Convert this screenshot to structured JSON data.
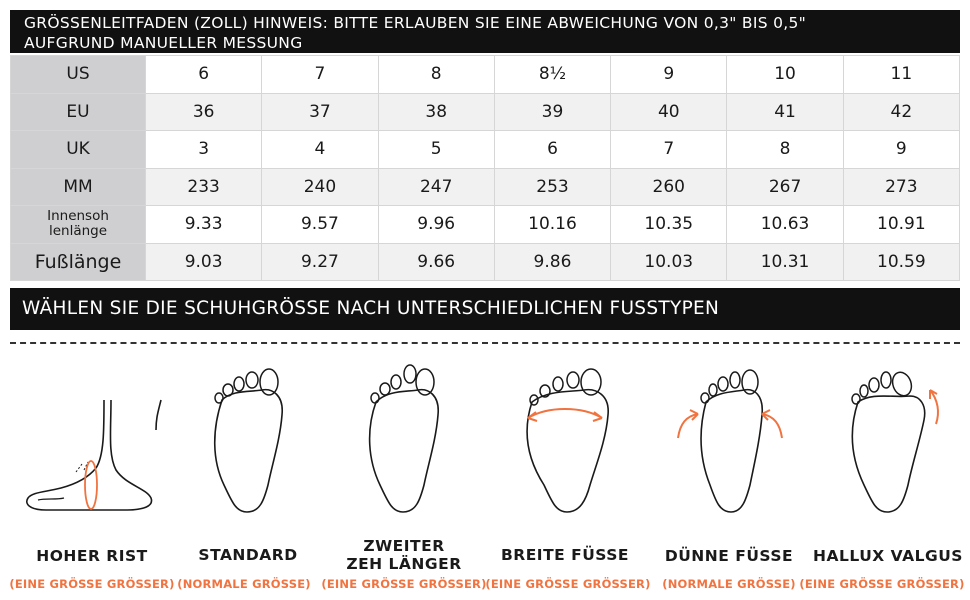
{
  "header": {
    "line1": "GRÖSSENLEITFADEN (ZOLL) HINWEIS: BITTE ERLAUBEN SIE EINE ABWEICHUNG VON 0,3\" BIS 0,5\"",
    "line2": "AUFGRUND MANUELLER MESSUNG"
  },
  "table": {
    "rows": [
      {
        "label": "US",
        "values": [
          "6",
          "7",
          "8",
          "8½",
          "9",
          "10",
          "11"
        ]
      },
      {
        "label": "EU",
        "values": [
          "36",
          "37",
          "38",
          "39",
          "40",
          "41",
          "42"
        ]
      },
      {
        "label": "UK",
        "values": [
          "3",
          "4",
          "5",
          "6",
          "7",
          "8",
          "9"
        ]
      },
      {
        "label": "MM",
        "values": [
          "233",
          "240",
          "247",
          "253",
          "260",
          "267",
          "273"
        ]
      },
      {
        "label": "Innensoh lenlänge",
        "label_line1": "Innensoh",
        "label_line2": "lenlänge",
        "values": [
          "9.33",
          "9.57",
          "9.96",
          "10.16",
          "10.35",
          "10.63",
          "10.91"
        ]
      },
      {
        "label": "Fußlänge",
        "values": [
          "9.03",
          "9.27",
          "9.66",
          "9.86",
          "10.03",
          "10.31",
          "10.59"
        ]
      }
    ]
  },
  "subheader": "WÄHLEN SIE DIE SCHUHGRÖSSE NACH UNTERSCHIEDLICHEN FUSSTYPEN",
  "foot_types": [
    {
      "name": "HOHER RIST",
      "note": "(EINE GRÖSSE GRÖSSER)",
      "icon": "high-instep-foot-side-icon"
    },
    {
      "name": "STANDARD",
      "note": "(NORMALE GRÖSSE)",
      "icon": "standard-foot-icon"
    },
    {
      "name_line1": "ZWEITER",
      "name_line2": "ZEH LÄNGER",
      "note": "(EINE GRÖSSE GRÖSSER)",
      "icon": "second-toe-longer-foot-icon"
    },
    {
      "name": "BREITE FÜSSE",
      "note": "(EINE GRÖSSE GRÖSSER)",
      "icon": "wide-foot-icon"
    },
    {
      "name": "DÜNNE FÜSSE",
      "note": "(NORMALE GRÖSSE)",
      "icon": "narrow-foot-icon"
    },
    {
      "name": "HALLUX VALGUS",
      "note": "(EINE GRÖSSE GRÖSSER)",
      "icon": "hallux-valgus-foot-icon"
    }
  ],
  "colors": {
    "header_bg": "#111111",
    "row_header_bg": "#cfcfd1",
    "accent": "#f07340"
  }
}
